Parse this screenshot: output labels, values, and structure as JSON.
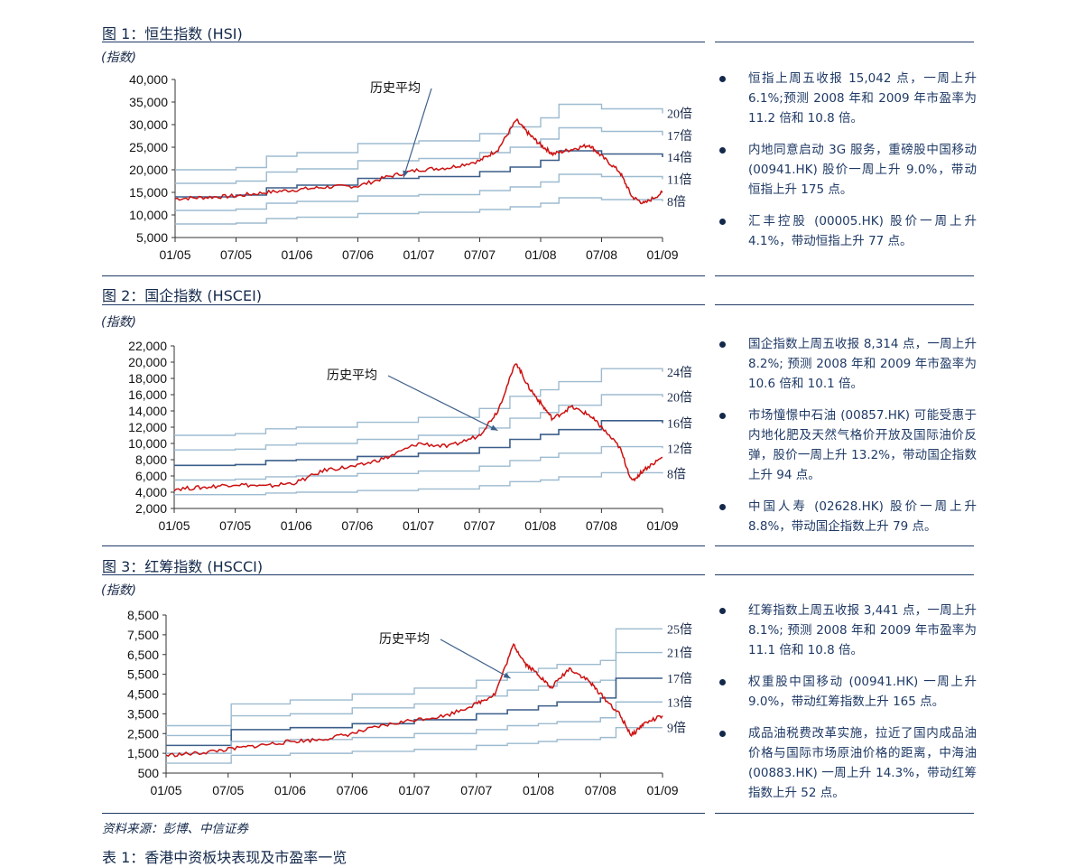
{
  "charts": [
    {
      "title": "图 1：恒生指数 (HSI)",
      "unit": "(指数)",
      "annotation": "历史平均",
      "bullets": [
        "恒指上周五收报 15,042 点，一周上升 6.1%;预测 2008 年和 2009 年市盈率为 11.2 倍和 10.8 倍。",
        "内地同意启动 3G 服务，重磅股中国移动 (00941.HK) 股价一周上升 9.0%，带动恒指上升 175 点。",
        "汇丰控股 (00005.HK) 股价一周上升 4.1%，带动恒指上升 77 点。"
      ]
    },
    {
      "title": "图 2：国企指数 (HSCEI)",
      "unit": "(指数)",
      "annotation": "历史平均",
      "bullets": [
        "国企指数上周五收报 8,314 点，一周上升 8.2%; 预测 2008 年和 2009 年市盈率为 10.6 倍和 10.1 倍。",
        "市场憧憬中石油 (00857.HK) 可能受惠于内地化肥及天然气格价开放及国际油价反弹，股价一周上升 13.2%，带动国企指数上升 94 点。",
        "中国人寿 (02628.HK) 股价一周上升 8.8%，带动国企指数上升 79 点。"
      ]
    },
    {
      "title": "图 3：红筹指数 (HSCCI)",
      "unit": "(指数)",
      "annotation": "历史平均",
      "bullets": [
        "红筹指数上周五收报 3,441 点，一周上升 8.1%; 预测 2008 年和 2009 年市盈率为 11.1 倍和 10.8 倍。",
        "权重股中国移动 (00941.HK) 一周上升 9.0%，带动红筹指数上升 165 点。",
        "成品油税费改革实施，拉近了国内成品油价格与国际市场原油价格的距离，中海油 (00883.HK) 一周上升 14.3%，带动红筹指数上升 52 点。"
      ]
    }
  ],
  "source": "资料来源：彭博、中信证券",
  "next_title": "表 1：香港中资板块表现及市盈率一览",
  "colors": {
    "index_line": "#cc1111",
    "average_band": "#3b5f8a",
    "pe_band": "#9dbbd0",
    "text": "#13294b"
  },
  "chart_data": [
    {
      "type": "line",
      "categories": [
        "01/05",
        "07/05",
        "01/06",
        "07/06",
        "01/07",
        "07/07",
        "01/08",
        "07/08",
        "01/09"
      ],
      "ylim": [
        5000,
        40000
      ],
      "yticks": [
        5000,
        10000,
        15000,
        20000,
        25000,
        30000,
        35000,
        40000
      ],
      "ytick_labels": [
        "5,000",
        "10,000",
        "15,000",
        "20,000",
        "25,000",
        "30,000",
        "35,000",
        "40,000"
      ],
      "bands": [
        {
          "name": "20倍",
          "x": [
            0,
            1,
            1.5,
            2,
            3,
            4,
            5,
            5.5,
            6,
            6.3,
            7,
            8
          ],
          "y": [
            20000,
            20500,
            23000,
            23800,
            25800,
            26400,
            28000,
            29500,
            31500,
            34500,
            33500,
            32500
          ]
        },
        {
          "name": "17倍",
          "x": [
            0,
            1,
            1.5,
            2,
            3,
            4,
            5,
            5.5,
            6,
            6.3,
            7,
            8
          ],
          "y": [
            17000,
            17500,
            19500,
            20200,
            22000,
            22500,
            23800,
            25000,
            26800,
            29300,
            28500,
            27600
          ]
        },
        {
          "name": "14倍",
          "x": [
            0,
            1,
            1.5,
            2,
            3,
            4,
            5,
            5.5,
            6,
            6.3,
            7,
            8
          ],
          "y": [
            14000,
            14400,
            16000,
            16600,
            18100,
            18500,
            19600,
            20600,
            22100,
            24200,
            23500,
            22800
          ]
        },
        {
          "name": "11倍",
          "x": [
            0,
            1,
            1.5,
            2,
            3,
            4,
            5,
            5.5,
            6,
            6.3,
            7,
            8
          ],
          "y": [
            11000,
            11300,
            12600,
            13000,
            14200,
            14500,
            15400,
            16200,
            17300,
            19000,
            18500,
            17900
          ]
        },
        {
          "name": "8倍",
          "x": [
            0,
            1,
            1.5,
            2,
            3,
            4,
            5,
            5.5,
            6,
            6.3,
            7,
            8
          ],
          "y": [
            8000,
            8200,
            9200,
            9500,
            10300,
            10600,
            11200,
            11800,
            12600,
            13800,
            13400,
            13000
          ]
        }
      ],
      "average_band": "14倍",
      "series": [
        {
          "x": [
            0,
            0.5,
            1,
            1.5,
            2,
            2.5,
            3,
            3.5,
            4,
            4.5,
            5,
            5.3,
            5.6,
            5.8,
            6,
            6.2,
            6.5,
            6.8,
            7,
            7.3,
            7.5,
            7.7,
            8
          ],
          "y": [
            13600,
            13900,
            14200,
            15000,
            15600,
            16200,
            16400,
            18500,
            20000,
            20500,
            22000,
            24500,
            31000,
            28000,
            25500,
            23500,
            24500,
            25500,
            23000,
            19500,
            14000,
            12500,
            15000
          ]
        }
      ]
    },
    {
      "type": "line",
      "categories": [
        "01/05",
        "07/05",
        "01/06",
        "07/06",
        "01/07",
        "07/07",
        "01/08",
        "07/08",
        "01/09"
      ],
      "ylim": [
        2000,
        22000
      ],
      "yticks": [
        2000,
        4000,
        6000,
        8000,
        10000,
        12000,
        14000,
        16000,
        18000,
        20000,
        22000
      ],
      "ytick_labels": [
        "2,000",
        "4,000",
        "6,000",
        "8,000",
        "10,000",
        "12,000",
        "14,000",
        "16,000",
        "18,000",
        "20,000",
        "22,000"
      ],
      "bands": [
        {
          "name": "24倍",
          "x": [
            0,
            1,
            1.5,
            2,
            3,
            4,
            5,
            5.5,
            6,
            6.3,
            7,
            8
          ],
          "y": [
            11000,
            11200,
            11800,
            12000,
            12600,
            13200,
            14300,
            15800,
            16600,
            17600,
            19200,
            18800
          ]
        },
        {
          "name": "20倍",
          "x": [
            0,
            1,
            1.5,
            2,
            3,
            4,
            5,
            5.5,
            6,
            6.3,
            7,
            8
          ],
          "y": [
            9200,
            9300,
            9800,
            10000,
            10500,
            11000,
            11900,
            13100,
            13800,
            14700,
            16000,
            15700
          ]
        },
        {
          "name": "16倍",
          "x": [
            0,
            1,
            1.5,
            2,
            3,
            4,
            5,
            5.5,
            6,
            6.3,
            7,
            8
          ],
          "y": [
            7300,
            7400,
            7900,
            8000,
            8400,
            8800,
            9500,
            10500,
            11100,
            11700,
            12800,
            12500
          ]
        },
        {
          "name": "12倍",
          "x": [
            0,
            1,
            1.5,
            2,
            3,
            4,
            5,
            5.5,
            6,
            6.3,
            7,
            8
          ],
          "y": [
            5500,
            5600,
            5900,
            6000,
            6300,
            6600,
            7200,
            7900,
            8300,
            8800,
            9600,
            9400
          ]
        },
        {
          "name": "8倍",
          "x": [
            0,
            1,
            1.5,
            2,
            3,
            4,
            5,
            5.5,
            6,
            6.3,
            7,
            8
          ],
          "y": [
            3700,
            3700,
            3900,
            4000,
            4200,
            4400,
            4800,
            5300,
            5500,
            5900,
            6400,
            6300
          ]
        }
      ],
      "average_band": "16倍",
      "series": [
        {
          "x": [
            0,
            0.5,
            1,
            1.5,
            2,
            2.5,
            3,
            3.5,
            4,
            4.5,
            5,
            5.3,
            5.6,
            5.8,
            6,
            6.2,
            6.5,
            6.8,
            7,
            7.3,
            7.5,
            7.7,
            8
          ],
          "y": [
            4400,
            4600,
            5000,
            4700,
            5200,
            6800,
            7200,
            8300,
            10000,
            9600,
            11000,
            14000,
            20000,
            17000,
            15000,
            13000,
            14500,
            13500,
            12000,
            9500,
            5300,
            6800,
            8300
          ]
        }
      ]
    },
    {
      "type": "line",
      "categories": [
        "01/05",
        "07/05",
        "01/06",
        "07/06",
        "01/07",
        "07/07",
        "01/08",
        "07/08",
        "01/09"
      ],
      "ylim": [
        500,
        8500
      ],
      "yticks": [
        500,
        1500,
        2500,
        3500,
        4500,
        5500,
        6500,
        7500,
        8500
      ],
      "ytick_labels": [
        "500",
        "1,500",
        "2,500",
        "3,500",
        "4,500",
        "5,500",
        "6,500",
        "7,500",
        "8,500"
      ],
      "bands": [
        {
          "name": "25倍",
          "x": [
            0,
            1,
            1.05,
            2,
            3,
            4,
            5,
            5.5,
            6,
            6.3,
            7,
            7.25,
            8
          ],
          "y": [
            2900,
            2900,
            4000,
            4200,
            4500,
            4800,
            5200,
            5600,
            5800,
            6000,
            6200,
            7800,
            7800
          ]
        },
        {
          "name": "21倍",
          "x": [
            0,
            1,
            1.05,
            2,
            3,
            4,
            5,
            5.5,
            6,
            6.3,
            7,
            7.25,
            8
          ],
          "y": [
            2400,
            2400,
            3400,
            3500,
            3800,
            4000,
            4400,
            4700,
            4900,
            5100,
            5200,
            6600,
            6600
          ]
        },
        {
          "name": "17倍",
          "x": [
            0,
            1,
            1.05,
            2,
            3,
            4,
            5,
            5.5,
            6,
            6.3,
            7,
            7.25,
            8
          ],
          "y": [
            1900,
            1900,
            2700,
            2800,
            3000,
            3200,
            3500,
            3700,
            3900,
            4100,
            4300,
            5300,
            5300
          ]
        },
        {
          "name": "13倍",
          "x": [
            0,
            1,
            1.05,
            2,
            3,
            4,
            5,
            5.5,
            6,
            6.3,
            7,
            7.25,
            8
          ],
          "y": [
            1500,
            1500,
            2100,
            2200,
            2300,
            2500,
            2700,
            2900,
            3000,
            3100,
            3300,
            4100,
            4100
          ]
        },
        {
          "name": "9倍",
          "x": [
            0,
            1,
            1.05,
            2,
            3,
            4,
            5,
            5.5,
            6,
            6.3,
            7,
            7.25,
            8
          ],
          "y": [
            1000,
            1000,
            1400,
            1500,
            1600,
            1700,
            1900,
            2000,
            2100,
            2200,
            2300,
            2800,
            2800
          ]
        }
      ],
      "average_band": "17倍",
      "series": [
        {
          "x": [
            0,
            0.5,
            1,
            1.5,
            2,
            2.5,
            3,
            3.5,
            4,
            4.5,
            5,
            5.3,
            5.6,
            5.8,
            6,
            6.2,
            6.5,
            6.8,
            7,
            7.3,
            7.5,
            7.7,
            8
          ],
          "y": [
            1400,
            1500,
            1700,
            1900,
            2100,
            2200,
            2500,
            2900,
            3200,
            3400,
            4000,
            4500,
            7000,
            6000,
            5500,
            4800,
            5800,
            5200,
            4500,
            3500,
            2400,
            3000,
            3400
          ]
        }
      ]
    }
  ]
}
